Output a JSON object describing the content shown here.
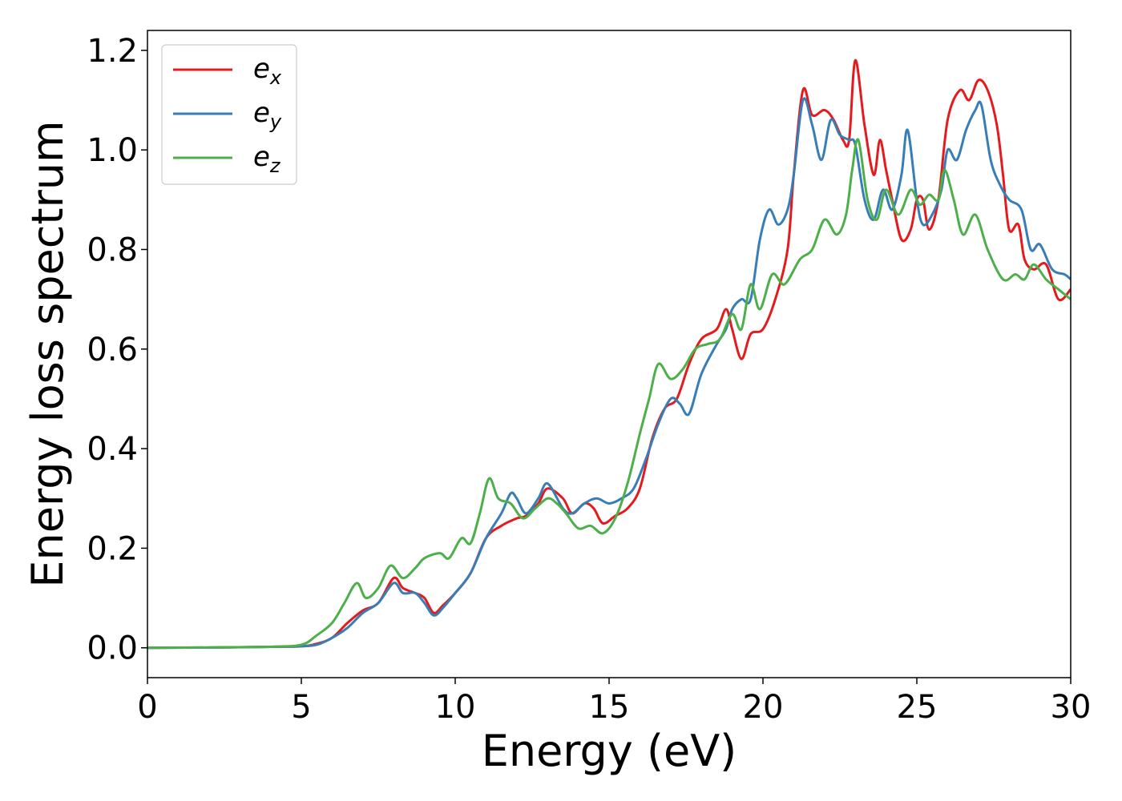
{
  "chart_data": {
    "type": "line",
    "title": "",
    "xlabel": "Energy (eV)",
    "ylabel": "Energy loss spectrum",
    "xlim": [
      0,
      30
    ],
    "ylim": [
      -0.06,
      1.24
    ],
    "xticks": [
      0,
      5,
      10,
      15,
      20,
      25,
      30
    ],
    "yticks": [
      0.0,
      0.2,
      0.4,
      0.6,
      0.8,
      1.0,
      1.2
    ],
    "xtick_labels": [
      "0",
      "5",
      "10",
      "15",
      "20",
      "25",
      "30"
    ],
    "ytick_labels": [
      "0.0",
      "0.2",
      "0.4",
      "0.6",
      "0.8",
      "1.0",
      "1.2"
    ],
    "grid": false,
    "legend_position": "upper-left",
    "series": [
      {
        "base": "e",
        "sub": "x",
        "color": "#e41a1c",
        "points": [
          [
            0,
            0
          ],
          [
            2,
            0.0005
          ],
          [
            4,
            0.002
          ],
          [
            5,
            0.003
          ],
          [
            5.5,
            0.008
          ],
          [
            6,
            0.02
          ],
          [
            6.5,
            0.05
          ],
          [
            7,
            0.075
          ],
          [
            7.5,
            0.09
          ],
          [
            8,
            0.14
          ],
          [
            8.3,
            0.12
          ],
          [
            8.7,
            0.11
          ],
          [
            9,
            0.1
          ],
          [
            9.3,
            0.07
          ],
          [
            9.6,
            0.085
          ],
          [
            10,
            0.11
          ],
          [
            10.5,
            0.15
          ],
          [
            11,
            0.22
          ],
          [
            11.5,
            0.245
          ],
          [
            12,
            0.26
          ],
          [
            12.3,
            0.265
          ],
          [
            12.7,
            0.29
          ],
          [
            13,
            0.32
          ],
          [
            13.5,
            0.3
          ],
          [
            13.8,
            0.27
          ],
          [
            14.2,
            0.29
          ],
          [
            14.5,
            0.28
          ],
          [
            14.8,
            0.25
          ],
          [
            15.2,
            0.265
          ],
          [
            15.6,
            0.28
          ],
          [
            16,
            0.32
          ],
          [
            16.4,
            0.42
          ],
          [
            16.8,
            0.48
          ],
          [
            17.2,
            0.5
          ],
          [
            17.6,
            0.57
          ],
          [
            18,
            0.62
          ],
          [
            18.5,
            0.64
          ],
          [
            18.8,
            0.68
          ],
          [
            19,
            0.64
          ],
          [
            19.3,
            0.58
          ],
          [
            19.6,
            0.63
          ],
          [
            20,
            0.64
          ],
          [
            20.4,
            0.7
          ],
          [
            20.8,
            0.8
          ],
          [
            21,
            0.95
          ],
          [
            21.3,
            1.12
          ],
          [
            21.6,
            1.07
          ],
          [
            22,
            1.08
          ],
          [
            22.3,
            1.06
          ],
          [
            22.6,
            1.02
          ],
          [
            22.8,
            1.02
          ],
          [
            23,
            1.18
          ],
          [
            23.3,
            1.05
          ],
          [
            23.6,
            0.95
          ],
          [
            23.8,
            1.02
          ],
          [
            24,
            0.96
          ],
          [
            24.2,
            0.9
          ],
          [
            24.5,
            0.82
          ],
          [
            24.8,
            0.84
          ],
          [
            25,
            0.9
          ],
          [
            25.2,
            0.9
          ],
          [
            25.4,
            0.84
          ],
          [
            25.7,
            0.9
          ],
          [
            26,
            1.06
          ],
          [
            26.4,
            1.12
          ],
          [
            26.7,
            1.1
          ],
          [
            27,
            1.14
          ],
          [
            27.3,
            1.12
          ],
          [
            27.6,
            1.05
          ],
          [
            27.8,
            0.95
          ],
          [
            28,
            0.84
          ],
          [
            28.3,
            0.85
          ],
          [
            28.5,
            0.78
          ],
          [
            28.8,
            0.76
          ],
          [
            29.2,
            0.77
          ],
          [
            29.6,
            0.7
          ],
          [
            30,
            0.72
          ]
        ]
      },
      {
        "base": "e",
        "sub": "y",
        "color": "#377eb8",
        "points": [
          [
            0,
            0
          ],
          [
            2,
            0.0005
          ],
          [
            4,
            0.002
          ],
          [
            5,
            0.003
          ],
          [
            5.5,
            0.006
          ],
          [
            6,
            0.02
          ],
          [
            6.5,
            0.04
          ],
          [
            7,
            0.07
          ],
          [
            7.5,
            0.09
          ],
          [
            8,
            0.13
          ],
          [
            8.3,
            0.11
          ],
          [
            8.7,
            0.11
          ],
          [
            9,
            0.09
          ],
          [
            9.3,
            0.065
          ],
          [
            9.6,
            0.08
          ],
          [
            10,
            0.11
          ],
          [
            10.5,
            0.15
          ],
          [
            11,
            0.22
          ],
          [
            11.5,
            0.27
          ],
          [
            11.8,
            0.31
          ],
          [
            12,
            0.3
          ],
          [
            12.3,
            0.27
          ],
          [
            12.7,
            0.3
          ],
          [
            13,
            0.33
          ],
          [
            13.5,
            0.28
          ],
          [
            13.8,
            0.27
          ],
          [
            14.2,
            0.29
          ],
          [
            14.6,
            0.3
          ],
          [
            15,
            0.29
          ],
          [
            15.4,
            0.3
          ],
          [
            15.8,
            0.32
          ],
          [
            16.2,
            0.38
          ],
          [
            16.6,
            0.45
          ],
          [
            17,
            0.5
          ],
          [
            17.3,
            0.49
          ],
          [
            17.6,
            0.47
          ],
          [
            18,
            0.55
          ],
          [
            18.5,
            0.61
          ],
          [
            18.8,
            0.64
          ],
          [
            19,
            0.68
          ],
          [
            19.3,
            0.7
          ],
          [
            19.6,
            0.7
          ],
          [
            19.9,
            0.82
          ],
          [
            20.2,
            0.88
          ],
          [
            20.5,
            0.85
          ],
          [
            20.8,
            0.88
          ],
          [
            21,
            0.95
          ],
          [
            21.3,
            1.1
          ],
          [
            21.6,
            1.05
          ],
          [
            21.9,
            0.98
          ],
          [
            22.2,
            1.06
          ],
          [
            22.5,
            1.03
          ],
          [
            22.8,
            1.02
          ],
          [
            23,
            1.01
          ],
          [
            23.3,
            0.9
          ],
          [
            23.6,
            0.86
          ],
          [
            23.9,
            0.92
          ],
          [
            24.2,
            0.88
          ],
          [
            24.5,
            0.95
          ],
          [
            24.7,
            1.04
          ],
          [
            25,
            0.9
          ],
          [
            25.2,
            0.85
          ],
          [
            25.5,
            0.87
          ],
          [
            25.8,
            0.92
          ],
          [
            26,
            1.0
          ],
          [
            26.3,
            0.98
          ],
          [
            26.6,
            1.04
          ],
          [
            26.9,
            1.08
          ],
          [
            27.1,
            1.09
          ],
          [
            27.4,
            0.98
          ],
          [
            27.7,
            0.93
          ],
          [
            28,
            0.9
          ],
          [
            28.4,
            0.88
          ],
          [
            28.7,
            0.8
          ],
          [
            29,
            0.81
          ],
          [
            29.4,
            0.76
          ],
          [
            29.8,
            0.75
          ],
          [
            30,
            0.74
          ]
        ]
      },
      {
        "base": "e",
        "sub": "z",
        "color": "#4daf4a",
        "points": [
          [
            0,
            0
          ],
          [
            2,
            0.0005
          ],
          [
            4,
            0.002
          ],
          [
            5,
            0.006
          ],
          [
            5.5,
            0.025
          ],
          [
            6,
            0.05
          ],
          [
            6.4,
            0.09
          ],
          [
            6.8,
            0.13
          ],
          [
            7.1,
            0.1
          ],
          [
            7.5,
            0.12
          ],
          [
            7.9,
            0.165
          ],
          [
            8.3,
            0.14
          ],
          [
            8.7,
            0.16
          ],
          [
            9,
            0.18
          ],
          [
            9.5,
            0.19
          ],
          [
            9.8,
            0.18
          ],
          [
            10.2,
            0.22
          ],
          [
            10.5,
            0.21
          ],
          [
            10.8,
            0.27
          ],
          [
            11.1,
            0.34
          ],
          [
            11.4,
            0.3
          ],
          [
            11.8,
            0.29
          ],
          [
            12.2,
            0.26
          ],
          [
            12.6,
            0.28
          ],
          [
            13,
            0.3
          ],
          [
            13.3,
            0.29
          ],
          [
            13.6,
            0.27
          ],
          [
            14,
            0.24
          ],
          [
            14.4,
            0.245
          ],
          [
            14.8,
            0.23
          ],
          [
            15.2,
            0.26
          ],
          [
            15.6,
            0.33
          ],
          [
            16,
            0.43
          ],
          [
            16.3,
            0.5
          ],
          [
            16.6,
            0.57
          ],
          [
            17,
            0.54
          ],
          [
            17.4,
            0.56
          ],
          [
            17.8,
            0.6
          ],
          [
            18.2,
            0.61
          ],
          [
            18.6,
            0.62
          ],
          [
            19,
            0.67
          ],
          [
            19.3,
            0.64
          ],
          [
            19.6,
            0.73
          ],
          [
            19.9,
            0.68
          ],
          [
            20.3,
            0.75
          ],
          [
            20.7,
            0.73
          ],
          [
            21.2,
            0.78
          ],
          [
            21.6,
            0.8
          ],
          [
            22,
            0.86
          ],
          [
            22.4,
            0.83
          ],
          [
            22.7,
            0.87
          ],
          [
            22.9,
            0.96
          ],
          [
            23.1,
            1.02
          ],
          [
            23.4,
            0.9
          ],
          [
            23.7,
            0.86
          ],
          [
            24,
            0.92
          ],
          [
            24.4,
            0.87
          ],
          [
            24.8,
            0.92
          ],
          [
            25.1,
            0.89
          ],
          [
            25.4,
            0.91
          ],
          [
            25.7,
            0.9
          ],
          [
            25.9,
            0.96
          ],
          [
            26.2,
            0.9
          ],
          [
            26.5,
            0.83
          ],
          [
            26.9,
            0.87
          ],
          [
            27.3,
            0.8
          ],
          [
            27.8,
            0.74
          ],
          [
            28.2,
            0.75
          ],
          [
            28.5,
            0.74
          ],
          [
            28.8,
            0.77
          ],
          [
            29.2,
            0.74
          ],
          [
            29.6,
            0.72
          ],
          [
            30,
            0.7
          ]
        ]
      }
    ]
  }
}
